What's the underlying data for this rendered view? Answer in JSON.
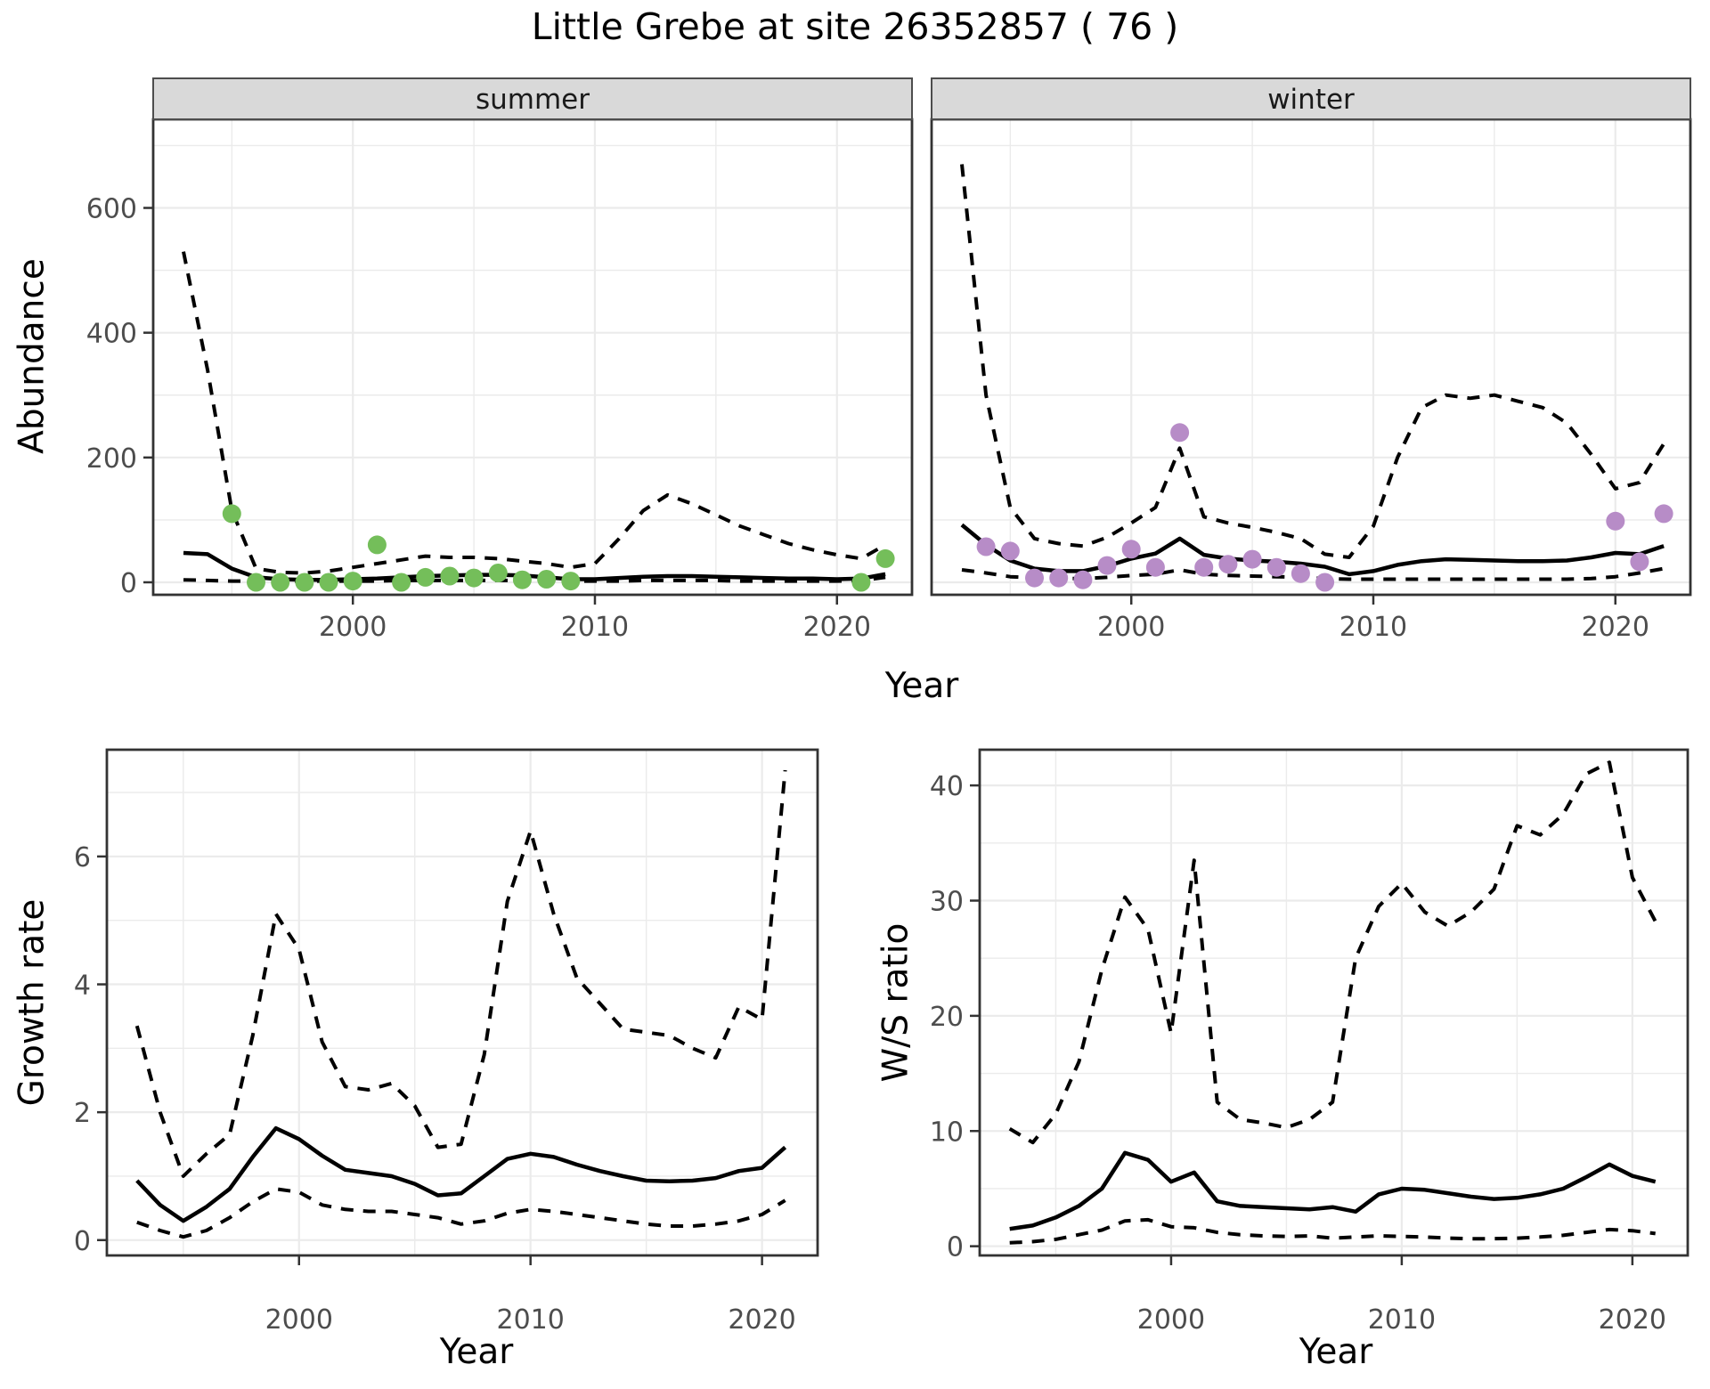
{
  "title": "Little Grebe at site 26352857 ( 76 )",
  "facet_labels": {
    "summer": "summer",
    "winter": "winter"
  },
  "axis_titles": {
    "y_abundance": "Abundance",
    "y_growth": "Growth rate",
    "y_ws": "W/S ratio",
    "x": "Year"
  },
  "colors": {
    "summer_points": "#74be5a",
    "winter_points": "#b78cc7",
    "line": "#000000",
    "strip_bg": "#d9d9d9",
    "strip_border": "#4d4d4d",
    "grid": "#ebebeb",
    "tick_text": "#4d4d4d",
    "panel_border": "#333333"
  },
  "chart_data": [
    {
      "id": "abundance-summer",
      "type": "line",
      "title": "summer",
      "xlabel": "Year",
      "ylabel": "Abundance",
      "x_range": [
        1991.75,
        2023.1
      ],
      "y_range": [
        -20,
        742
      ],
      "x_ticks": [
        2000,
        2010,
        2020
      ],
      "x_minor": [
        1995,
        2005,
        2015
      ],
      "y_ticks": [
        0,
        200,
        400,
        600
      ],
      "y_minor": [
        100,
        300,
        500,
        700
      ],
      "grid": "on",
      "legend": "none",
      "years": [
        1993,
        1994,
        1995,
        1996,
        1997,
        1998,
        1999,
        2000,
        2001,
        2002,
        2003,
        2004,
        2005,
        2006,
        2007,
        2008,
        2009,
        2010,
        2011,
        2012,
        2013,
        2014,
        2015,
        2016,
        2017,
        2018,
        2019,
        2020,
        2021,
        2022
      ],
      "series": [
        {
          "name": "fit",
          "style": "solid",
          "values": [
            47,
            45,
            22,
            8,
            5,
            4,
            4,
            5,
            6,
            8,
            10,
            11,
            12,
            12,
            11,
            8,
            5,
            5,
            7,
            9,
            10,
            10,
            9,
            8,
            7,
            6,
            6,
            5,
            6,
            13
          ]
        },
        {
          "name": "upper_ci",
          "style": "dashed",
          "values": [
            530,
            340,
            115,
            22,
            16,
            15,
            18,
            24,
            30,
            36,
            42,
            40,
            40,
            38,
            34,
            30,
            24,
            30,
            70,
            115,
            140,
            126,
            108,
            90,
            76,
            62,
            52,
            44,
            38,
            60
          ]
        },
        {
          "name": "lower_ci",
          "style": "dashed",
          "values": [
            4,
            3,
            2,
            2,
            2,
            2,
            2,
            2,
            2,
            3,
            3,
            3,
            3,
            3,
            3,
            2,
            2,
            2,
            2,
            3,
            3,
            3,
            3,
            2,
            2,
            2,
            2,
            2,
            3,
            8
          ]
        }
      ],
      "points": {
        "name": "observed",
        "color_key": "summer_points",
        "years": [
          1995,
          1996,
          1997,
          1998,
          1999,
          2000,
          2001,
          2002,
          2003,
          2004,
          2005,
          2006,
          2007,
          2008,
          2009,
          2021,
          2022
        ],
        "values": [
          110,
          0,
          0,
          0,
          0,
          2,
          60,
          0,
          8,
          10,
          7,
          15,
          4,
          5,
          2,
          0,
          38
        ]
      }
    },
    {
      "id": "abundance-winter",
      "type": "line",
      "title": "winter",
      "xlabel": "Year",
      "ylabel": "Abundance",
      "x_range": [
        1991.75,
        2023.1
      ],
      "y_range": [
        -20,
        742
      ],
      "x_ticks": [
        2000,
        2010,
        2020
      ],
      "x_minor": [
        1995,
        2005,
        2015
      ],
      "y_ticks": [
        0,
        200,
        400,
        600
      ],
      "y_minor": [
        100,
        300,
        500,
        700
      ],
      "grid": "on",
      "legend": "none",
      "years": [
        1993,
        1994,
        1995,
        1996,
        1997,
        1998,
        1999,
        2000,
        2001,
        2002,
        2003,
        2004,
        2005,
        2006,
        2007,
        2008,
        2009,
        2010,
        2011,
        2012,
        2013,
        2014,
        2015,
        2016,
        2017,
        2018,
        2019,
        2020,
        2021,
        2022
      ],
      "series": [
        {
          "name": "fit",
          "style": "solid",
          "values": [
            92,
            60,
            35,
            22,
            18,
            18,
            26,
            38,
            46,
            70,
            44,
            38,
            35,
            33,
            30,
            25,
            13,
            18,
            28,
            34,
            37,
            36,
            35,
            34,
            34,
            35,
            40,
            47,
            45,
            58
          ]
        },
        {
          "name": "upper_ci",
          "style": "dashed",
          "values": [
            670,
            300,
            120,
            70,
            62,
            58,
            72,
            95,
            120,
            215,
            105,
            95,
            88,
            80,
            70,
            45,
            40,
            90,
            200,
            280,
            300,
            295,
            300,
            290,
            280,
            255,
            205,
            150,
            160,
            222
          ]
        },
        {
          "name": "lower_ci",
          "style": "dashed",
          "values": [
            20,
            15,
            9,
            7,
            6,
            6,
            8,
            11,
            13,
            20,
            13,
            11,
            10,
            9,
            8,
            6,
            5,
            5,
            5,
            5,
            5,
            5,
            5,
            5,
            5,
            5,
            6,
            9,
            15,
            22
          ]
        }
      ],
      "points": {
        "name": "observed",
        "color_key": "winter_points",
        "years": [
          1994,
          1995,
          1996,
          1997,
          1998,
          1999,
          2000,
          2001,
          2002,
          2003,
          2004,
          2005,
          2006,
          2007,
          2008,
          2020,
          2021,
          2022
        ],
        "values": [
          57,
          50,
          7,
          7,
          4,
          27,
          53,
          24,
          240,
          24,
          29,
          37,
          24,
          14,
          0,
          98,
          33,
          110
        ]
      }
    },
    {
      "id": "growth-rate",
      "type": "line",
      "title": "Growth rate",
      "xlabel": "Year",
      "ylabel": "Growth rate",
      "x_range": [
        1991.7,
        2022.4
      ],
      "y_range": [
        -0.24,
        7.67
      ],
      "x_ticks": [
        2000,
        2010,
        2020
      ],
      "x_minor": [
        1995,
        2005,
        2015
      ],
      "y_ticks": [
        0,
        2,
        4,
        6
      ],
      "y_minor": [
        1,
        3,
        5,
        7
      ],
      "grid": "on",
      "legend": "none",
      "years": [
        1993,
        1994,
        1995,
        1996,
        1997,
        1998,
        1999,
        2000,
        2001,
        2002,
        2003,
        2004,
        2005,
        2006,
        2007,
        2008,
        2009,
        2010,
        2011,
        2012,
        2013,
        2014,
        2015,
        2016,
        2017,
        2018,
        2019,
        2020,
        2021
      ],
      "series": [
        {
          "name": "fit",
          "style": "solid",
          "values": [
            0.93,
            0.55,
            0.3,
            0.52,
            0.8,
            1.3,
            1.75,
            1.58,
            1.32,
            1.1,
            1.05,
            1.0,
            0.88,
            0.7,
            0.73,
            1.0,
            1.27,
            1.35,
            1.3,
            1.18,
            1.08,
            1.0,
            0.93,
            0.92,
            0.93,
            0.97,
            1.08,
            1.13,
            1.45
          ]
        },
        {
          "name": "upper_ci",
          "style": "dashed",
          "values": [
            3.35,
            2.0,
            1.0,
            1.35,
            1.65,
            3.2,
            5.1,
            4.55,
            3.1,
            2.4,
            2.35,
            2.45,
            2.1,
            1.45,
            1.5,
            2.9,
            5.3,
            6.4,
            5.1,
            4.1,
            3.7,
            3.3,
            3.25,
            3.2,
            3.0,
            2.85,
            3.65,
            3.45,
            7.35
          ]
        },
        {
          "name": "lower_ci",
          "style": "dashed",
          "values": [
            0.28,
            0.15,
            0.05,
            0.15,
            0.35,
            0.6,
            0.8,
            0.75,
            0.55,
            0.48,
            0.45,
            0.45,
            0.4,
            0.35,
            0.25,
            0.3,
            0.42,
            0.48,
            0.45,
            0.4,
            0.35,
            0.3,
            0.25,
            0.22,
            0.22,
            0.25,
            0.3,
            0.4,
            0.62
          ]
        }
      ]
    },
    {
      "id": "ws-ratio",
      "type": "line",
      "title": "W/S ratio",
      "xlabel": "Year",
      "ylabel": "W/S ratio",
      "x_range": [
        1991.7,
        2022.4
      ],
      "y_range": [
        -0.8,
        43.1
      ],
      "x_ticks": [
        2000,
        2010,
        2020
      ],
      "x_minor": [
        1995,
        2005,
        2015
      ],
      "y_ticks": [
        0,
        10,
        20,
        30,
        40
      ],
      "y_minor": [
        5,
        15,
        25,
        35
      ],
      "grid": "on",
      "legend": "none",
      "years": [
        1993,
        1994,
        1995,
        1996,
        1997,
        1998,
        1999,
        2000,
        2001,
        2002,
        2003,
        2004,
        2005,
        2006,
        2007,
        2008,
        2009,
        2010,
        2011,
        2012,
        2013,
        2014,
        2015,
        2016,
        2017,
        2018,
        2019,
        2020,
        2021
      ],
      "series": [
        {
          "name": "fit",
          "style": "solid",
          "values": [
            1.5,
            1.8,
            2.5,
            3.5,
            5.0,
            8.1,
            7.5,
            5.6,
            6.4,
            3.9,
            3.5,
            3.4,
            3.3,
            3.2,
            3.4,
            3.0,
            4.5,
            5.0,
            4.9,
            4.6,
            4.3,
            4.1,
            4.2,
            4.5,
            5.0,
            6.0,
            7.1,
            6.1,
            5.6
          ]
        },
        {
          "name": "upper_ci",
          "style": "dashed",
          "values": [
            10.2,
            9.0,
            11.5,
            16,
            24,
            30.3,
            27.5,
            18.5,
            33.5,
            12.5,
            11,
            10.7,
            10.3,
            11,
            12.5,
            25,
            29.5,
            31.5,
            29,
            27.8,
            29,
            31,
            36.5,
            35.7,
            37.5,
            41,
            42,
            32,
            28.2
          ]
        },
        {
          "name": "lower_ci",
          "style": "dashed",
          "values": [
            0.3,
            0.4,
            0.6,
            1.0,
            1.4,
            2.2,
            2.3,
            1.7,
            1.6,
            1.2,
            1.0,
            0.9,
            0.85,
            0.9,
            0.7,
            0.8,
            0.9,
            0.85,
            0.8,
            0.7,
            0.65,
            0.65,
            0.7,
            0.8,
            0.95,
            1.2,
            1.45,
            1.35,
            1.1
          ]
        }
      ]
    }
  ]
}
